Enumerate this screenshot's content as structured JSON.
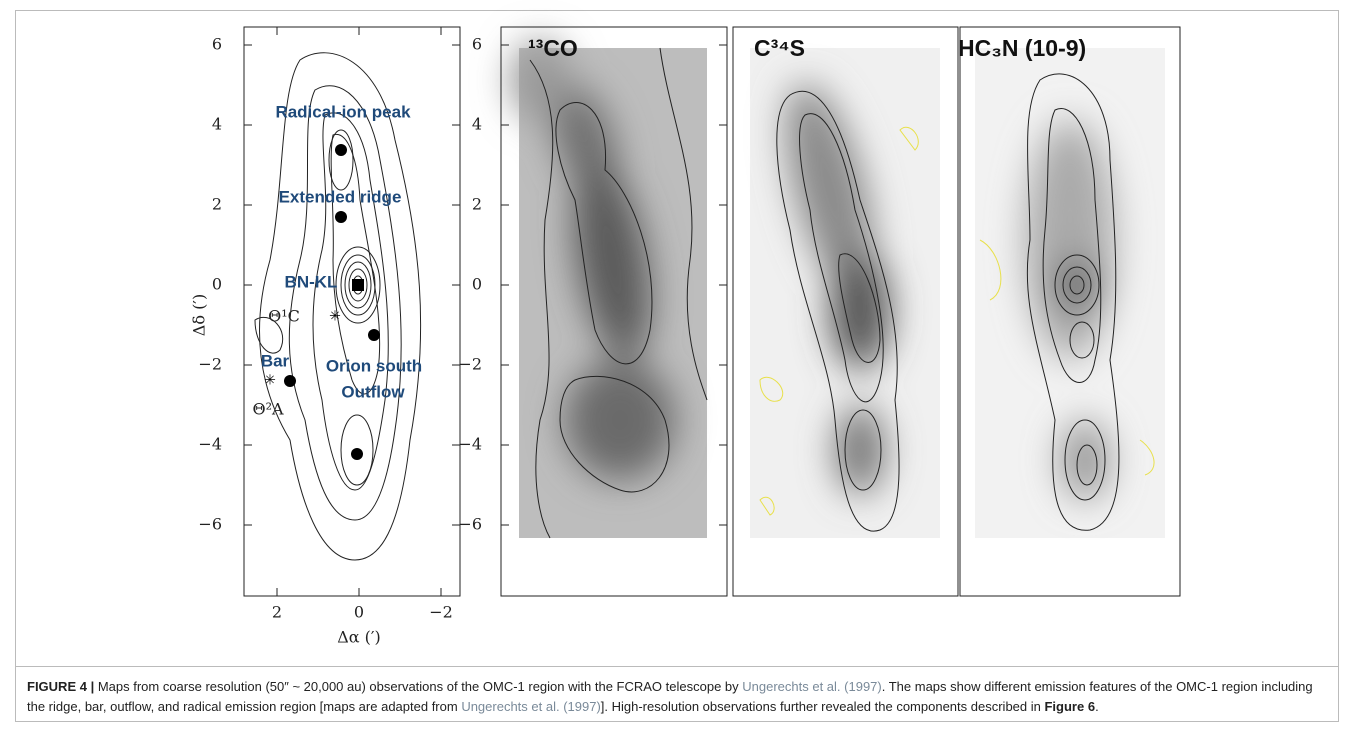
{
  "figure": {
    "panels": [
      {
        "xlabel": "Δα (′)",
        "ylabel": "Δδ (′)",
        "yticks": [
          6,
          4,
          2,
          0,
          {
            "value": -2,
            "label": "−2"
          },
          {
            "value": -4,
            "label": "−4"
          },
          {
            "value": -6,
            "label": "−6"
          }
        ],
        "xticks": [
          2,
          0,
          {
            "value": -2,
            "label": "−2"
          }
        ],
        "annotations": [
          "Radical-ion peak",
          "Extended ridge",
          "BN-KL",
          "Bar",
          "Orion south",
          "Outflow",
          "Θ¹C",
          "Θ²A"
        ]
      },
      {
        "label": "¹³CO",
        "yticks": [
          6,
          4,
          2,
          0,
          {
            "value": -2,
            "label": "−2"
          },
          {
            "value": -4,
            "label": "−4"
          },
          {
            "value": -6,
            "label": "−6"
          }
        ]
      },
      {
        "label": "C³⁴S"
      },
      {
        "label": "HC₃N (10-9)"
      }
    ],
    "caption": {
      "label": "FIGURE 4 |",
      "parts": [
        {
          "text": " Maps from coarse resolution (50″ ~ 20,000 au) observations of the OMC-1 region with the FCRAO telescope by ",
          "kind": "plain"
        },
        {
          "text": "Ungerechts et al. (1997)",
          "kind": "link"
        },
        {
          "text": ". The maps show different emission features of the OMC-1 region including the ridge, bar, outflow, and radical emission region [maps are adapted from ",
          "kind": "plain"
        },
        {
          "text": "Ungerechts et al. (1997)",
          "kind": "link"
        },
        {
          "text": "]. High-resolution observations further revealed the components described in ",
          "kind": "plain"
        },
        {
          "text": "Figure 6",
          "kind": "bold"
        },
        {
          "text": ".",
          "kind": "plain"
        }
      ]
    }
  }
}
